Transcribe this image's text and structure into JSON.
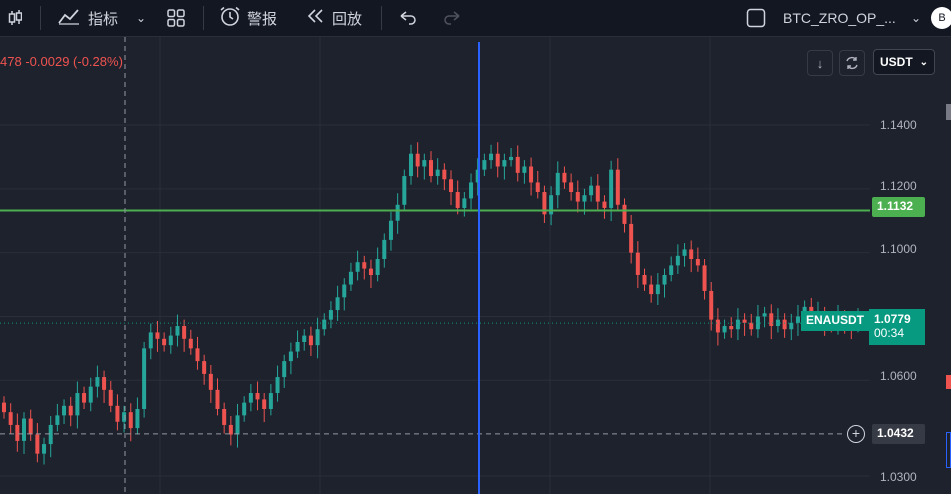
{
  "toolbar": {
    "indicators_label": "指标",
    "alerts_label": "警报",
    "replay_label": "回放",
    "symbol_label": "BTC_ZRO_OP_...",
    "avatar_letter": "B"
  },
  "legend": {
    "partial_value": "478",
    "change": "-0.0029",
    "change_pct": "(-0.28%)"
  },
  "currency": {
    "selected": "USDT"
  },
  "price_axis": {
    "ticks": [
      "1.1400",
      "1.1200",
      "1.1000",
      "1.0600",
      "1.0300"
    ]
  },
  "price_line": {
    "value": "1.1132",
    "color": "#4caf50"
  },
  "last_price": {
    "symbol": "ENAUSDT",
    "value": "1.0779",
    "countdown": "00:34",
    "color": "#089981"
  },
  "crosshair": {
    "value": "1.0432"
  },
  "colors": {
    "up": "#26a69a",
    "down": "#ef5350",
    "background": "#1e222d",
    "crosshair_v": "#2962ff"
  },
  "chart_data": {
    "type": "candlestick",
    "symbol": "ENAUSDT",
    "ylim": [
      1.025,
      1.15
    ],
    "price_ticks": [
      1.14,
      1.12,
      1.1,
      1.06,
      1.03
    ],
    "horizontal_line": 1.1132,
    "last_price": 1.0779,
    "crosshair_price": 1.0432,
    "closes": [
      1.05,
      1.046,
      1.041,
      1.048,
      1.043,
      1.037,
      1.04,
      1.046,
      1.049,
      1.052,
      1.049,
      1.056,
      1.053,
      1.058,
      1.061,
      1.057,
      1.052,
      1.047,
      1.05,
      1.045,
      1.051,
      1.07,
      1.075,
      1.073,
      1.071,
      1.074,
      1.077,
      1.073,
      1.07,
      1.066,
      1.062,
      1.057,
      1.051,
      1.046,
      1.043,
      1.049,
      1.053,
      1.056,
      1.054,
      1.051,
      1.056,
      1.061,
      1.066,
      1.069,
      1.072,
      1.074,
      1.071,
      1.076,
      1.079,
      1.082,
      1.086,
      1.09,
      1.094,
      1.097,
      1.095,
      1.093,
      1.098,
      1.104,
      1.11,
      1.115,
      1.124,
      1.131,
      1.127,
      1.129,
      1.124,
      1.126,
      1.123,
      1.119,
      1.114,
      1.117,
      1.122,
      1.126,
      1.129,
      1.131,
      1.127,
      1.129,
      1.13,
      1.125,
      1.127,
      1.122,
      1.119,
      1.112,
      1.118,
      1.125,
      1.122,
      1.119,
      1.116,
      1.118,
      1.121,
      1.116,
      1.114,
      1.126,
      1.115,
      1.109,
      1.1,
      1.093,
      1.09,
      1.087,
      1.09,
      1.093,
      1.096,
      1.099,
      1.101,
      1.098,
      1.096,
      1.088,
      1.079,
      1.075,
      1.077,
      1.076,
      1.079,
      1.078,
      1.076,
      1.08,
      1.081,
      1.077,
      1.079,
      1.076,
      1.078,
      1.08,
      1.083,
      1.079,
      1.081,
      1.078,
      1.077,
      1.08,
      1.078,
      1.077,
      1.079
    ]
  }
}
